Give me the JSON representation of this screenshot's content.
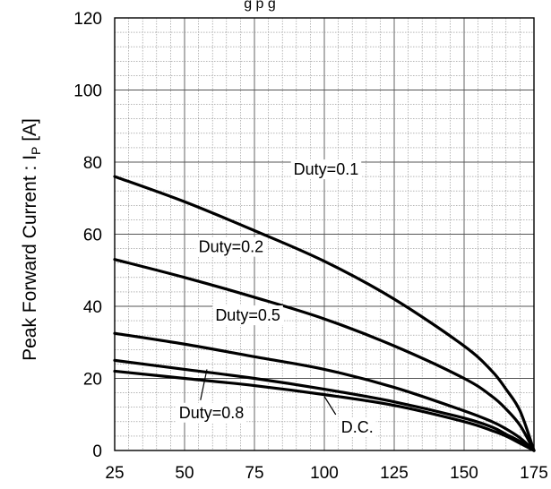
{
  "chart_data": {
    "type": "line",
    "title": "g   p   g",
    "xlabel": "",
    "ylabel": "Peak Forward Current : I",
    "ylabel_sub": "P",
    "ylabel_unit": " [A]",
    "xlim": [
      25,
      175
    ],
    "ylim": [
      0,
      120
    ],
    "x_ticks": [
      25,
      50,
      75,
      100,
      125,
      150,
      175
    ],
    "y_ticks": [
      0,
      20,
      40,
      60,
      80,
      100,
      120
    ],
    "x_minor_step": 5,
    "y_minor_step": 4,
    "grid": true,
    "series": [
      {
        "name": "Duty=0.1",
        "x": [
          25,
          50,
          75,
          100,
          125,
          150,
          160,
          165,
          170,
          175
        ],
        "y": [
          76,
          69,
          61,
          52.5,
          42,
          29,
          22,
          17,
          11,
          0
        ]
      },
      {
        "name": "Duty=0.2",
        "x": [
          25,
          50,
          75,
          100,
          125,
          150,
          160,
          165,
          170,
          175
        ],
        "y": [
          53,
          48,
          42.5,
          36.5,
          29,
          20,
          15,
          11.5,
          7,
          0
        ]
      },
      {
        "name": "Duty=0.5",
        "x": [
          25,
          50,
          75,
          100,
          125,
          150,
          160,
          165,
          170,
          175
        ],
        "y": [
          32.5,
          29.5,
          26,
          22.5,
          17.5,
          11,
          8,
          6,
          3.5,
          0
        ]
      },
      {
        "name": "Duty=0.8",
        "x": [
          25,
          50,
          75,
          100,
          125,
          150,
          160,
          165,
          170,
          175
        ],
        "y": [
          25,
          22.5,
          20,
          17,
          13.5,
          9,
          6.5,
          4.5,
          2.5,
          0
        ]
      },
      {
        "name": "D.C.",
        "x": [
          25,
          50,
          75,
          100,
          125,
          150,
          160,
          165,
          170,
          175
        ],
        "y": [
          22,
          20,
          18,
          15.5,
          12.5,
          8,
          5.5,
          4,
          2,
          0
        ]
      }
    ],
    "annotations": [
      {
        "text": "Duty=0.1",
        "series": "Duty=0.1",
        "at_x": 89,
        "at_y": 76.5,
        "leader": false
      },
      {
        "text": "Duty=0.2",
        "series": "Duty=0.2",
        "at_x": 55,
        "at_y": 55,
        "leader": false
      },
      {
        "text": "Duty=0.5",
        "series": "Duty=0.5",
        "at_x": 61,
        "at_y": 36,
        "leader": false
      },
      {
        "text": "Duty=0.8",
        "series": "Duty=0.8",
        "at_x": 48,
        "at_y": 9,
        "leader": true,
        "leader_to_x": 58,
        "leader_to_y": 22.5
      },
      {
        "text": "D.C.",
        "series": "D.C.",
        "at_x": 106,
        "at_y": 5,
        "leader": true,
        "leader_to_x": 100,
        "leader_to_y": 15
      }
    ]
  }
}
